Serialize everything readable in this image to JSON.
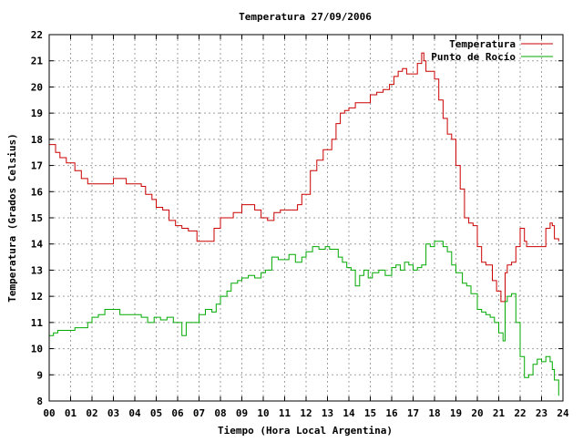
{
  "chart_data": {
    "type": "line",
    "title": "Temperatura 27/09/2006",
    "xlabel": "Tiempo (Hora Local Argentina)",
    "ylabel": "Temperatura (Grados Celsius)",
    "xlim": [
      0,
      24
    ],
    "ylim": [
      8,
      22
    ],
    "x_ticks": [
      "00",
      "01",
      "02",
      "03",
      "04",
      "05",
      "06",
      "07",
      "08",
      "09",
      "10",
      "11",
      "12",
      "13",
      "14",
      "15",
      "16",
      "17",
      "18",
      "19",
      "20",
      "21",
      "22",
      "23",
      "24"
    ],
    "y_ticks": [
      "8",
      "9",
      "10",
      "11",
      "12",
      "13",
      "14",
      "15",
      "16",
      "17",
      "18",
      "19",
      "20",
      "21",
      "22"
    ],
    "grid": true,
    "legend_position": "top-right",
    "colors": {
      "temperatura": "#cc0000",
      "punto_de_rocio": "#00aa00",
      "grid": "#a0a0a0"
    },
    "series": [
      {
        "name": "Temperatura",
        "x": [
          0.0,
          0.3,
          0.5,
          0.8,
          1.0,
          1.2,
          1.5,
          1.8,
          2.0,
          2.5,
          2.8,
          3.0,
          3.3,
          3.6,
          4.0,
          4.3,
          4.5,
          4.8,
          5.0,
          5.3,
          5.6,
          5.9,
          6.0,
          6.2,
          6.5,
          6.9,
          7.0,
          7.2,
          7.4,
          7.7,
          8.0,
          8.3,
          8.6,
          9.0,
          9.3,
          9.6,
          9.9,
          10.2,
          10.5,
          10.8,
          11.0,
          11.3,
          11.6,
          11.8,
          12.0,
          12.2,
          12.5,
          12.8,
          13.0,
          13.2,
          13.4,
          13.6,
          13.8,
          14.0,
          14.3,
          14.5,
          14.7,
          15.0,
          15.3,
          15.6,
          15.9,
          16.1,
          16.3,
          16.5,
          16.7,
          16.9,
          17.2,
          17.4,
          17.5,
          17.6,
          17.8,
          18.0,
          18.2,
          18.4,
          18.6,
          18.8,
          19.0,
          19.2,
          19.4,
          19.6,
          19.8,
          20.0,
          20.2,
          20.4,
          20.5,
          20.7,
          20.9,
          21.1,
          21.3,
          21.4,
          21.5,
          21.6,
          21.8,
          22.0,
          22.2,
          22.3,
          22.5,
          22.7,
          23.0,
          23.2,
          23.4,
          23.5,
          23.6,
          23.8
        ],
        "values": [
          17.8,
          17.5,
          17.3,
          17.1,
          17.1,
          16.8,
          16.5,
          16.3,
          16.3,
          16.3,
          16.3,
          16.5,
          16.5,
          16.3,
          16.3,
          16.2,
          15.9,
          15.7,
          15.4,
          15.3,
          14.9,
          14.7,
          14.7,
          14.6,
          14.5,
          14.1,
          14.1,
          14.1,
          14.1,
          14.6,
          15.0,
          15.0,
          15.2,
          15.5,
          15.5,
          15.3,
          15.0,
          14.9,
          15.2,
          15.3,
          15.3,
          15.3,
          15.5,
          15.9,
          15.9,
          16.8,
          17.2,
          17.6,
          17.6,
          18.0,
          18.6,
          19.0,
          19.1,
          19.2,
          19.4,
          19.4,
          19.4,
          19.7,
          19.8,
          19.9,
          20.1,
          20.4,
          20.6,
          20.7,
          20.5,
          20.5,
          20.9,
          21.3,
          21.0,
          20.6,
          20.6,
          20.3,
          19.5,
          18.8,
          18.2,
          18.0,
          17.0,
          16.1,
          15.0,
          14.8,
          14.7,
          13.9,
          13.3,
          13.2,
          13.2,
          12.6,
          12.2,
          11.8,
          12.9,
          13.2,
          13.2,
          13.3,
          13.9,
          14.6,
          14.1,
          13.9,
          13.9,
          13.9,
          13.9,
          14.6,
          14.8,
          14.7,
          14.2,
          14.1
        ]
      },
      {
        "name": "Punto de Rocío",
        "x": [
          0.0,
          0.2,
          0.4,
          0.6,
          0.8,
          1.0,
          1.2,
          1.5,
          1.8,
          2.0,
          2.3,
          2.6,
          3.0,
          3.3,
          3.6,
          4.0,
          4.3,
          4.6,
          4.9,
          5.2,
          5.5,
          5.8,
          6.0,
          6.2,
          6.4,
          6.6,
          7.0,
          7.3,
          7.6,
          7.8,
          8.0,
          8.3,
          8.5,
          8.8,
          9.0,
          9.3,
          9.6,
          9.9,
          10.1,
          10.4,
          10.7,
          11.0,
          11.2,
          11.5,
          11.8,
          12.0,
          12.3,
          12.6,
          12.9,
          13.1,
          13.3,
          13.5,
          13.7,
          13.9,
          14.1,
          14.3,
          14.5,
          14.7,
          14.9,
          15.1,
          15.4,
          15.7,
          16.0,
          16.2,
          16.4,
          16.6,
          16.8,
          17.0,
          17.2,
          17.4,
          17.6,
          17.8,
          18.0,
          18.2,
          18.4,
          18.6,
          18.8,
          19.0,
          19.3,
          19.5,
          19.7,
          20.0,
          20.2,
          20.4,
          20.6,
          20.8,
          21.0,
          21.2,
          21.3,
          21.4,
          21.6,
          21.8,
          22.0,
          22.2,
          22.4,
          22.6,
          22.8,
          23.0,
          23.2,
          23.4,
          23.5,
          23.6,
          23.8
        ],
        "values": [
          10.5,
          10.6,
          10.7,
          10.7,
          10.7,
          10.7,
          10.8,
          10.8,
          11.0,
          11.2,
          11.3,
          11.5,
          11.5,
          11.3,
          11.3,
          11.3,
          11.2,
          11.0,
          11.2,
          11.1,
          11.2,
          11.0,
          11.0,
          10.5,
          11.0,
          11.0,
          11.3,
          11.5,
          11.4,
          11.7,
          12.0,
          12.2,
          12.5,
          12.6,
          12.7,
          12.8,
          12.7,
          12.9,
          13.0,
          13.5,
          13.4,
          13.4,
          13.6,
          13.3,
          13.5,
          13.7,
          13.9,
          13.8,
          13.9,
          13.8,
          13.8,
          13.5,
          13.3,
          13.1,
          13.0,
          12.4,
          12.8,
          13.0,
          12.7,
          12.9,
          13.0,
          12.8,
          13.1,
          13.2,
          13.0,
          13.3,
          13.2,
          13.0,
          13.1,
          13.2,
          14.0,
          13.9,
          14.1,
          14.1,
          13.9,
          13.7,
          13.2,
          12.9,
          12.5,
          12.4,
          12.1,
          11.5,
          11.4,
          11.3,
          11.2,
          11.0,
          10.6,
          10.3,
          11.8,
          12.0,
          12.1,
          11.0,
          9.7,
          8.9,
          9.0,
          9.4,
          9.6,
          9.5,
          9.7,
          9.5,
          9.2,
          8.8,
          8.2
        ]
      }
    ]
  }
}
